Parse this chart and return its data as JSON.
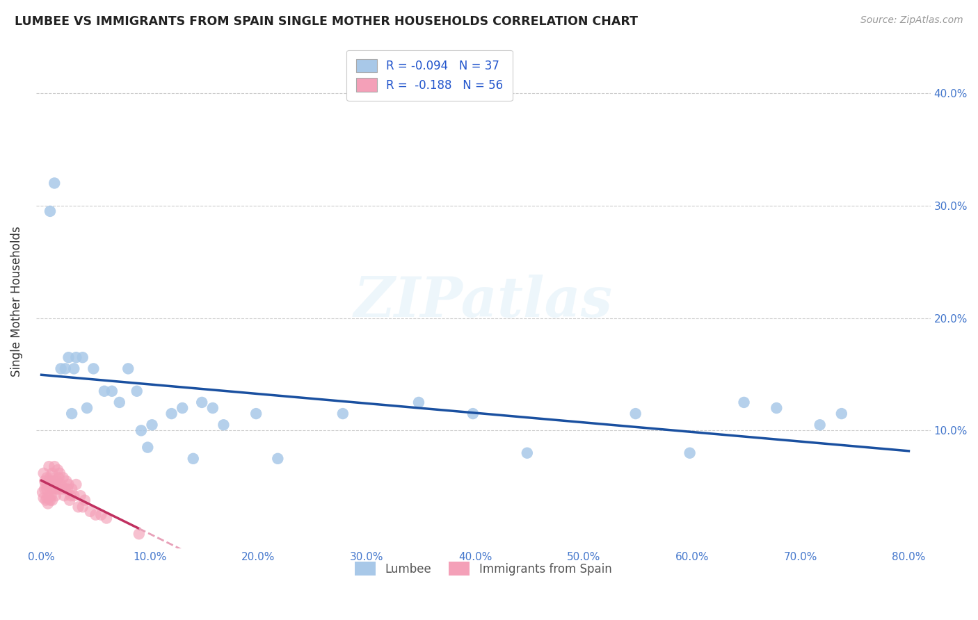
{
  "title": "LUMBEE VS IMMIGRANTS FROM SPAIN SINGLE MOTHER HOUSEHOLDS CORRELATION CHART",
  "source": "Source: ZipAtlas.com",
  "ylabel": "Single Mother Households",
  "legend_labels": [
    "Lumbee",
    "Immigrants from Spain"
  ],
  "lumbee_R": -0.094,
  "lumbee_N": 37,
  "spain_R": -0.188,
  "spain_N": 56,
  "xlim": [
    -0.005,
    0.82
  ],
  "ylim": [
    -0.005,
    0.435
  ],
  "yticks": [
    0.1,
    0.2,
    0.3,
    0.4
  ],
  "ytick_labels": [
    "10.0%",
    "20.0%",
    "30.0%",
    "40.0%"
  ],
  "xticks": [
    0.0,
    0.1,
    0.2,
    0.3,
    0.4,
    0.5,
    0.6,
    0.7,
    0.8
  ],
  "xtick_labels": [
    "0.0%",
    "10.0%",
    "20.0%",
    "30.0%",
    "40.0%",
    "50.0%",
    "60.0%",
    "70.0%",
    "80.0%"
  ],
  "lumbee_color": "#a8c8e8",
  "lumbee_line_color": "#1a50a0",
  "spain_color": "#f4a0b8",
  "spain_line_color": "#c03060",
  "spain_line_dashed_color": "#e8a0b8",
  "watermark_text": "ZIPatlas",
  "lumbee_x": [
    0.008,
    0.012,
    0.018,
    0.022,
    0.025,
    0.028,
    0.03,
    0.032,
    0.038,
    0.042,
    0.048,
    0.058,
    0.065,
    0.072,
    0.08,
    0.088,
    0.092,
    0.098,
    0.102,
    0.12,
    0.13,
    0.14,
    0.148,
    0.158,
    0.168,
    0.198,
    0.218,
    0.278,
    0.348,
    0.398,
    0.448,
    0.548,
    0.598,
    0.648,
    0.678,
    0.718,
    0.738
  ],
  "lumbee_y": [
    0.295,
    0.32,
    0.155,
    0.155,
    0.165,
    0.115,
    0.155,
    0.165,
    0.165,
    0.12,
    0.155,
    0.135,
    0.135,
    0.125,
    0.155,
    0.135,
    0.1,
    0.085,
    0.105,
    0.115,
    0.12,
    0.075,
    0.125,
    0.12,
    0.105,
    0.115,
    0.075,
    0.115,
    0.125,
    0.115,
    0.08,
    0.115,
    0.08,
    0.125,
    0.12,
    0.105,
    0.115
  ],
  "spain_x": [
    0.001,
    0.002,
    0.002,
    0.003,
    0.003,
    0.004,
    0.004,
    0.005,
    0.005,
    0.005,
    0.006,
    0.006,
    0.007,
    0.007,
    0.007,
    0.008,
    0.008,
    0.008,
    0.009,
    0.009,
    0.01,
    0.01,
    0.01,
    0.011,
    0.012,
    0.012,
    0.013,
    0.013,
    0.014,
    0.015,
    0.015,
    0.016,
    0.016,
    0.017,
    0.018,
    0.019,
    0.02,
    0.021,
    0.022,
    0.023,
    0.024,
    0.025,
    0.026,
    0.027,
    0.028,
    0.03,
    0.032,
    0.034,
    0.036,
    0.038,
    0.04,
    0.045,
    0.05,
    0.055,
    0.06,
    0.09
  ],
  "spain_y": [
    0.045,
    0.062,
    0.04,
    0.055,
    0.048,
    0.038,
    0.052,
    0.04,
    0.048,
    0.058,
    0.035,
    0.052,
    0.068,
    0.04,
    0.055,
    0.048,
    0.058,
    0.038,
    0.052,
    0.042,
    0.038,
    0.062,
    0.055,
    0.048,
    0.068,
    0.055,
    0.052,
    0.042,
    0.048,
    0.055,
    0.065,
    0.048,
    0.058,
    0.062,
    0.052,
    0.048,
    0.058,
    0.042,
    0.048,
    0.055,
    0.048,
    0.052,
    0.038,
    0.042,
    0.048,
    0.042,
    0.052,
    0.032,
    0.042,
    0.032,
    0.038,
    0.028,
    0.025,
    0.025,
    0.022,
    0.008
  ]
}
